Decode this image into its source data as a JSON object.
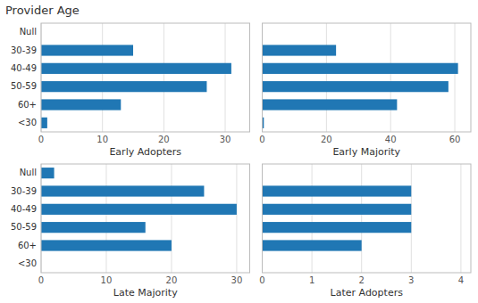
{
  "chart_data": [
    {
      "type": "bar",
      "title": "Provider Age",
      "orientation": "horizontal",
      "categories": [
        "Null",
        "30-39",
        "40-49",
        "50-59",
        "60+",
        "<30"
      ],
      "values": [
        0,
        15,
        31,
        27,
        13,
        1
      ],
      "color": "#2077B4",
      "xlim": [
        0,
        34
      ],
      "xticks": [
        0,
        10,
        20,
        30
      ],
      "x_label": "Early Adopters",
      "grid": true
    },
    {
      "type": "bar",
      "orientation": "horizontal",
      "categories": [
        "Null",
        "30-39",
        "40-49",
        "50-59",
        "60+",
        "<30"
      ],
      "values": [
        0,
        23,
        61,
        58,
        42,
        0.5
      ],
      "color": "#2077B4",
      "xlim": [
        0,
        65
      ],
      "xticks": [
        0,
        20,
        40,
        60
      ],
      "x_label": "Early Majority",
      "grid": true,
      "tick_labels": "x"
    },
    {
      "type": "bar",
      "orientation": "horizontal",
      "categories": [
        "Null",
        "30-39",
        "40-49",
        "50-59",
        "60+",
        "<30"
      ],
      "values": [
        2,
        25,
        30,
        16,
        20,
        0
      ],
      "color": "#2077B4",
      "xlim": [
        0,
        32
      ],
      "xticks": [
        0,
        10,
        20,
        30
      ],
      "x_label": "Late Majority",
      "grid": true
    },
    {
      "type": "bar",
      "orientation": "horizontal",
      "categories": [
        "Null",
        "30-39",
        "40-49",
        "50-59",
        "60+",
        "<30"
      ],
      "values": [
        0,
        3,
        3,
        3,
        2,
        0
      ],
      "color": "#2077B4",
      "xlim": [
        0,
        4.2
      ],
      "xticks": [
        0,
        1,
        2,
        3,
        4
      ],
      "x_label": "Later Adopters",
      "grid": true,
      "tick_labels": "x"
    }
  ]
}
